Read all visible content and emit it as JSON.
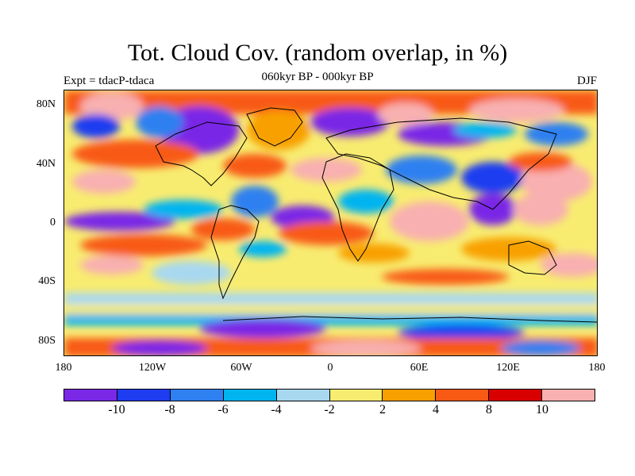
{
  "title": "Tot. Cloud Cov. (random overlap, in %)",
  "subtitle": "060kyr BP - 000kyr BP",
  "expt_label": "Expt = tdacP-tdaca",
  "season_label": "DJF",
  "y_ticks": [
    "80N",
    "40N",
    "0",
    "40S",
    "80S"
  ],
  "x_ticks": [
    "180",
    "120W",
    "60W",
    "0",
    "60E",
    "120E",
    "180"
  ],
  "colorbar": {
    "colors": [
      "#7a28e6",
      "#1e3cf0",
      "#2f80f0",
      "#00b4f0",
      "#a8d8f0",
      "#f8ec70",
      "#f8a000",
      "#f85a14",
      "#d80000",
      "#f8b0b0"
    ],
    "labels": [
      "-10",
      "-8",
      "-6",
      "-4",
      "-2",
      "2",
      "4",
      "8",
      "10"
    ]
  }
}
